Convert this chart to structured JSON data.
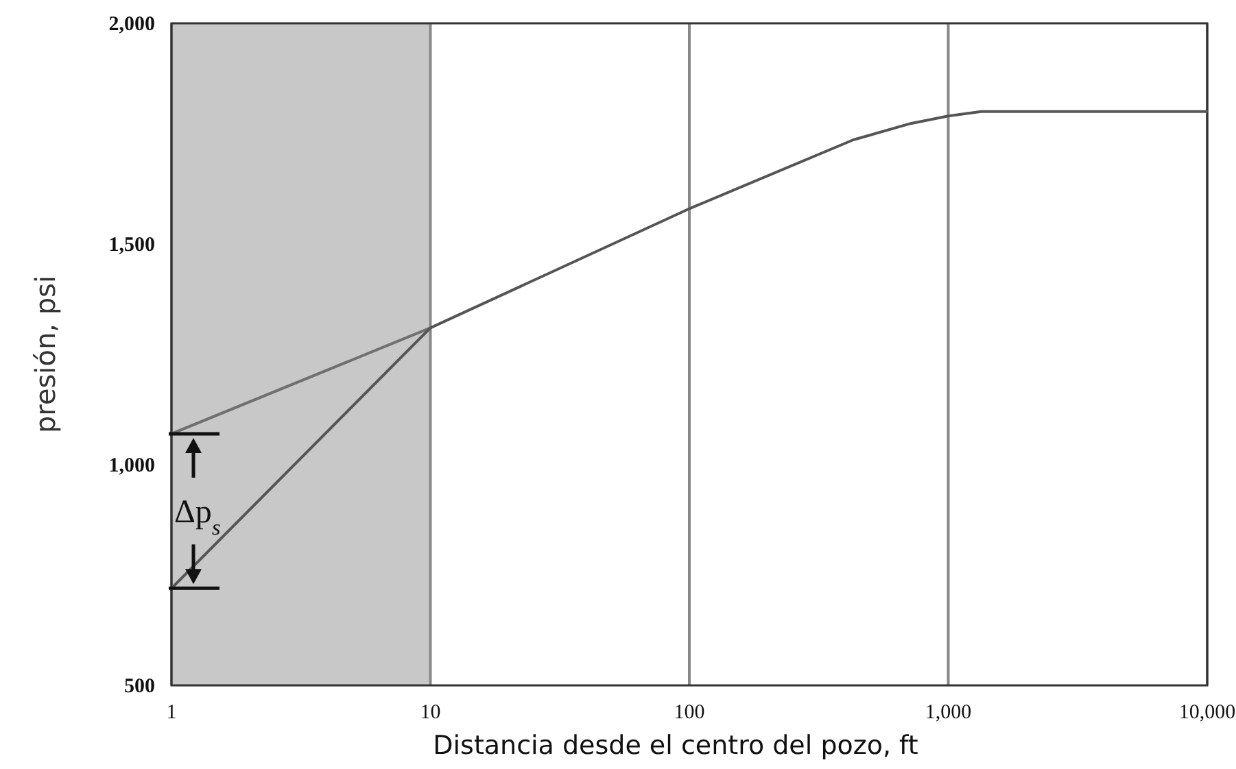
{
  "chart_data": {
    "type": "line",
    "xlabel": "Distancia desde el centro del pozo, ft",
    "ylabel": "presión, psi",
    "log": "x",
    "grid": "x",
    "line_style": "solid",
    "marker": "none",
    "xlim": [
      1,
      10000
    ],
    "xticks": [
      1,
      10,
      100,
      {
        "value": 1000,
        "label": "1,000"
      },
      {
        "value": 10000,
        "label": "10,000"
      }
    ],
    "ylim": [
      500,
      2000
    ],
    "yticks": [
      500,
      {
        "value": 1000,
        "label": "1,000"
      },
      {
        "value": 1500,
        "label": "1,500"
      },
      {
        "value": 2000,
        "label": "2,000"
      }
    ],
    "bands": [
      {
        "axis": "x",
        "from": 1,
        "to": 10,
        "color": "#c8c8c8"
      }
    ],
    "series": [
      {
        "color": "#707070",
        "x": [
          1,
          10
        ],
        "values": [
          1070,
          1310
        ]
      },
      {
        "color": "#555555",
        "x": [
          1,
          10,
          100,
          430,
          716,
          1000,
          1340,
          10000
        ],
        "values": [
          720,
          1310,
          1580,
          1736,
          1773,
          1790,
          1800,
          1800
        ]
      }
    ],
    "annotations": [
      {
        "text": "Δp$_{s}$",
        "x": 1,
        "y": 895
      }
    ]
  }
}
